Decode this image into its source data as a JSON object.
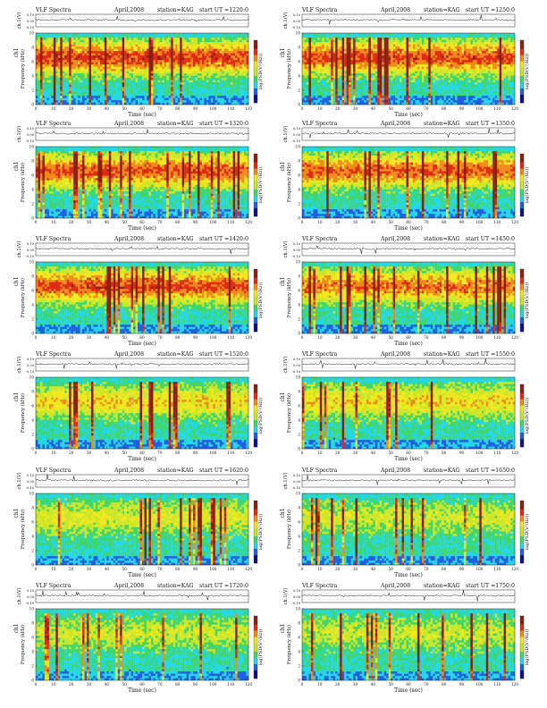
{
  "panels": [
    {
      "title": "VLF Spectra",
      "date": "April,2008",
      "station": "station=KAG",
      "start": "start UT =1220:0",
      "seed": 11,
      "intensity": 0.9
    },
    {
      "title": "VLF Spectra",
      "date": "April,2008",
      "station": "station=KAG",
      "start": "start UT =1250:0",
      "seed": 23,
      "intensity": 0.88
    },
    {
      "title": "VLF Spectra",
      "date": "April,2008",
      "station": "station=KAG",
      "start": "start UT =1320:0",
      "seed": 37,
      "intensity": 0.86
    },
    {
      "title": "VLF Spectra",
      "date": "April,2008",
      "station": "station=KAG",
      "start": "start UT =1350:0",
      "seed": 41,
      "intensity": 0.83
    },
    {
      "title": "VLF Spectra",
      "date": "April,2008",
      "station": "station=KAG",
      "start": "start UT =1420:0",
      "seed": 53,
      "intensity": 0.88
    },
    {
      "title": "VLF Spectra",
      "date": "April,2008",
      "station": "station=KAG",
      "start": "start UT =1450:0",
      "seed": 67,
      "intensity": 0.78
    },
    {
      "title": "VLF Spectra",
      "date": "April,2008",
      "station": "station=KAG",
      "start": "start UT =1520:0",
      "seed": 71,
      "intensity": 0.55
    },
    {
      "title": "VLF Spectra",
      "date": "April,2008",
      "station": "station=KAG",
      "start": "start UT =1550:0",
      "seed": 83,
      "intensity": 0.55
    },
    {
      "title": "VLF Spectra",
      "date": "April,2008",
      "station": "station=KAG",
      "start": "start UT =1620:0",
      "seed": 97,
      "intensity": 0.42
    },
    {
      "title": "VLF Spectra",
      "date": "April,2008",
      "station": "station=KAG",
      "start": "start UT =1650:0",
      "seed": 101,
      "intensity": 0.38
    },
    {
      "title": "VLF Spectra",
      "date": "April,2008",
      "station": "station=KAG",
      "start": "start UT =1720:0",
      "seed": 113,
      "intensity": 0.36
    },
    {
      "title": "VLF Spectra",
      "date": "April,2008",
      "station": "station=KAG",
      "start": "start UT =1750:0",
      "seed": 127,
      "intensity": 0.36
    }
  ],
  "chart_data": {
    "type": "heatmap",
    "title": "VLF Spectra",
    "xlabel": "Time (sec)",
    "ylabel": "Frequency (kHz)",
    "channel_label": "ch1",
    "waveform_ylabel": "ch.1(V)",
    "waveform_yticks": [
      "0.10",
      "0.00",
      "-0.10"
    ],
    "colorbar_label": "log(PSD(V²/Hz))",
    "xlim": [
      0,
      120
    ],
    "ylim": [
      0,
      10
    ],
    "xticks": [
      "0",
      "10",
      "20",
      "30",
      "40",
      "50",
      "60",
      "70",
      "80",
      "90",
      "100",
      "110",
      "120"
    ],
    "yticks": [
      "0",
      "2",
      "4",
      "6",
      "8",
      "10"
    ],
    "colormap": [
      "#0a0f8a",
      "#1f5fe0",
      "#22d8e8",
      "#41d66a",
      "#c8e62a",
      "#f2e81e",
      "#f08a1a",
      "#e02a12",
      "#8a1f10"
    ]
  }
}
